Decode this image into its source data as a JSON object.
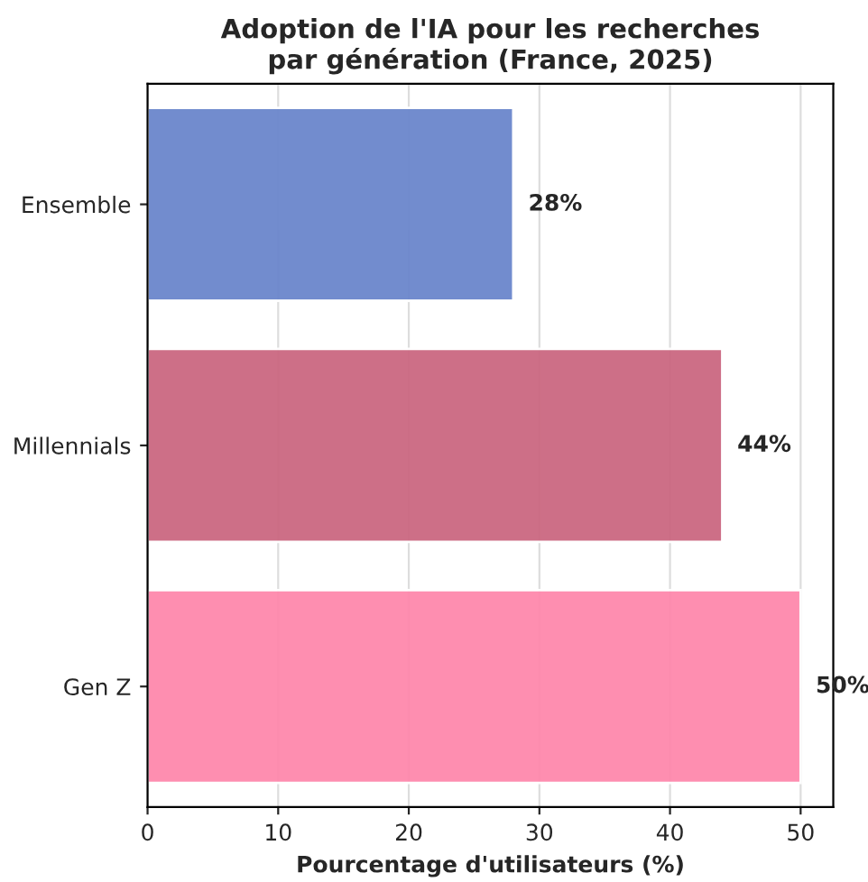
{
  "chart_data": {
    "type": "bar",
    "orientation": "horizontal",
    "title": "Adoption de l'IA pour les recherches\npar génération (France, 2025)",
    "xlabel": "Pourcentage d'utilisateurs (%)",
    "categories": [
      "Ensemble",
      "Millennials",
      "Gen Z"
    ],
    "values": [
      28,
      44,
      50
    ],
    "colors": [
      "#6b86cc",
      "#cb6881",
      "#fe88ac"
    ],
    "value_labels": [
      "28%",
      "44%",
      "50%"
    ],
    "xlim": [
      0,
      52.5
    ],
    "xticks": [
      0,
      10,
      20,
      30,
      40,
      50
    ],
    "grid": "x"
  }
}
